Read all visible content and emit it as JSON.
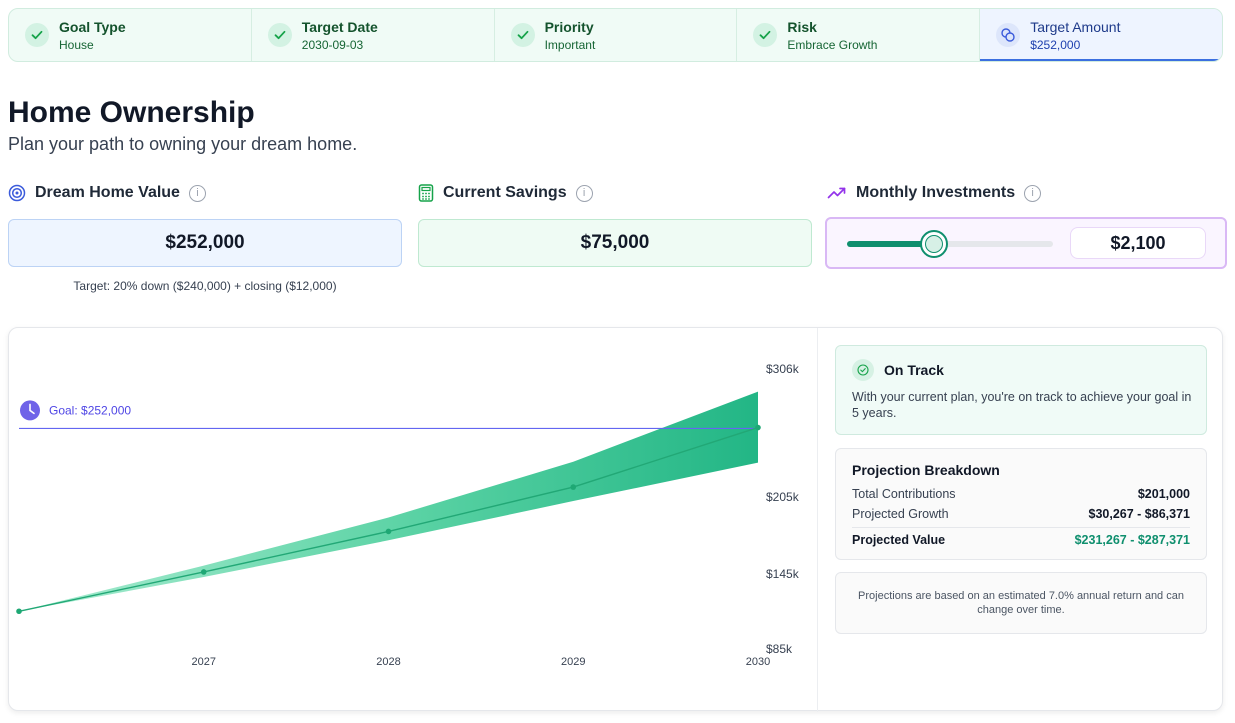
{
  "steps": [
    {
      "label": "Goal Type",
      "value": "House",
      "state": "complete"
    },
    {
      "label": "Target Date",
      "value": "2030-09-03",
      "state": "complete"
    },
    {
      "label": "Priority",
      "value": "Important",
      "state": "complete"
    },
    {
      "label": "Risk",
      "value": "Embrace Growth",
      "state": "complete"
    },
    {
      "label": "Target Amount",
      "value": "$252,000",
      "state": "active"
    }
  ],
  "page": {
    "title": "Home Ownership",
    "subtitle": "Plan your path to owning your dream home."
  },
  "fields": {
    "home_value": {
      "label": "Dream Home Value",
      "value": "$252,000",
      "icon": "target-icon",
      "note": "Target: 20% down ($240,000) + closing ($12,000)"
    },
    "savings": {
      "label": "Current Savings",
      "value": "$75,000",
      "icon": "calculator-icon"
    },
    "monthly": {
      "label": "Monthly Investments",
      "value": "$2,100",
      "icon": "trending-up-icon",
      "slider_fraction": 0.42
    }
  },
  "chart_data": {
    "type": "area",
    "x_ticks": [
      "2027",
      "2028",
      "2029",
      "2030"
    ],
    "y_ticks": [
      "$306k",
      "$205k",
      "$145k",
      "$85k"
    ],
    "goal_label": "Goal: $252,000",
    "goal_value": 252000,
    "series": [
      {
        "x": [
          2026.0,
          2027,
          2028,
          2029,
          2030
        ],
        "low": [
          114000,
          141000,
          170000,
          201000,
          231267
        ],
        "mid": [
          114000,
          145000,
          177000,
          212000,
          259000
        ],
        "high": [
          114000,
          150000,
          188000,
          232000,
          287371
        ]
      }
    ],
    "colors": {
      "band": "#1db985",
      "line": "#22a876",
      "goal": "#6366f1"
    }
  },
  "status": {
    "title": "On Track",
    "body": "With your current plan, you're on track to achieve your goal in 5 years."
  },
  "breakdown": {
    "title": "Projection Breakdown",
    "rows": [
      {
        "label": "Total Contributions",
        "value": "$201,000"
      },
      {
        "label": "Projected Growth",
        "value": "$30,267 - $86,371"
      }
    ],
    "total": {
      "label": "Projected Value",
      "value": "$231,267 - $287,371"
    }
  },
  "disclaimer": "Projections are based on an estimated 7.0% annual return and can change over time."
}
